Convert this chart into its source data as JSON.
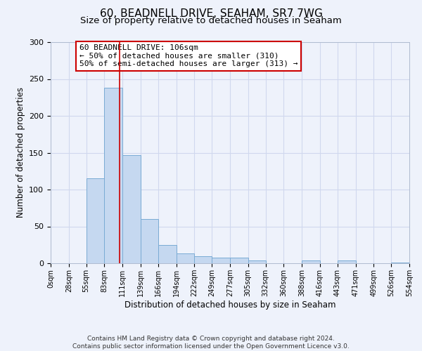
{
  "title": "60, BEADNELL DRIVE, SEAHAM, SR7 7WG",
  "subtitle": "Size of property relative to detached houses in Seaham",
  "xlabel": "Distribution of detached houses by size in Seaham",
  "ylabel": "Number of detached properties",
  "bar_color": "#c5d8f0",
  "bar_edge_color": "#7aabd4",
  "bin_edges": [
    0,
    28,
    55,
    83,
    111,
    139,
    166,
    194,
    222,
    249,
    277,
    305,
    332,
    360,
    388,
    416,
    443,
    471,
    499,
    526,
    554
  ],
  "bar_heights": [
    0,
    0,
    115,
    238,
    147,
    60,
    25,
    13,
    10,
    8,
    8,
    4,
    0,
    0,
    4,
    0,
    4,
    0,
    0,
    1
  ],
  "tick_labels": [
    "0sqm",
    "28sqm",
    "55sqm",
    "83sqm",
    "111sqm",
    "139sqm",
    "166sqm",
    "194sqm",
    "222sqm",
    "249sqm",
    "277sqm",
    "305sqm",
    "332sqm",
    "360sqm",
    "388sqm",
    "416sqm",
    "443sqm",
    "471sqm",
    "499sqm",
    "526sqm",
    "554sqm"
  ],
  "ylim": [
    0,
    300
  ],
  "yticks": [
    0,
    50,
    100,
    150,
    200,
    250,
    300
  ],
  "red_line_x": 106,
  "annotation_box_text": "60 BEADNELL DRIVE: 106sqm\n← 50% of detached houses are smaller (310)\n50% of semi-detached houses are larger (313) →",
  "annotation_box_color": "#ffffff",
  "annotation_box_edge_color": "#cc0000",
  "footer_line1": "Contains HM Land Registry data © Crown copyright and database right 2024.",
  "footer_line2": "Contains public sector information licensed under the Open Government Licence v3.0.",
  "bg_color": "#eef2fb",
  "grid_color": "#d0d8ee"
}
